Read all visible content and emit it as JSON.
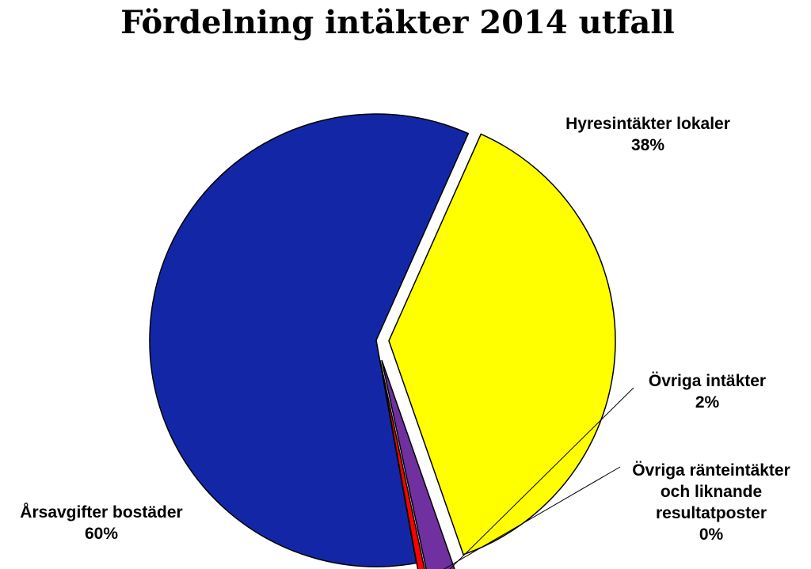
{
  "chart_data": {
    "type": "pie",
    "title": "Fördelning intäkter 2014 utfall",
    "slices": [
      {
        "label": [
          "Hyresintäkter lokaler"
        ],
        "percent_label": "38%",
        "value": 38.0,
        "color": "#ffff00"
      },
      {
        "label": [
          "Övriga intäkter"
        ],
        "percent_label": "2%",
        "value": 2.0,
        "color": "#7030a0"
      },
      {
        "label": [
          "Övriga ränteintäkter",
          "och liknande",
          "resultatposter"
        ],
        "percent_label": "0%",
        "value": 0.5,
        "color": "#ff0000"
      },
      {
        "label": [
          "Årsavgifter bostäder"
        ],
        "percent_label": "60%",
        "value": 59.5,
        "color": "#1327a6"
      }
    ],
    "exploded": true,
    "legend": "none"
  }
}
